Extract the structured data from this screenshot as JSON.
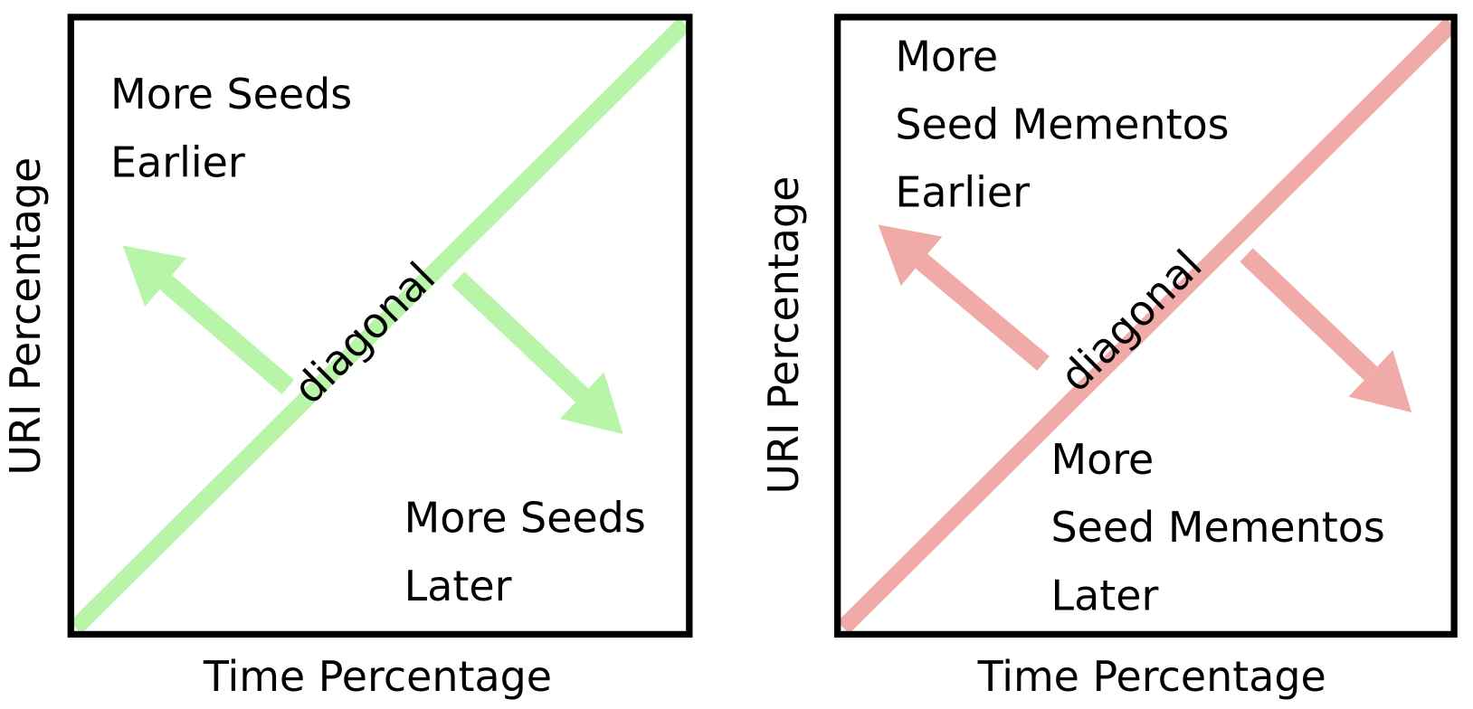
{
  "panels": [
    {
      "y_label": "URI Percentage",
      "x_label": "Time Percentage",
      "diagonal_label": "diagonal",
      "upper_label": [
        "More Seeds",
        "Earlier"
      ],
      "lower_label": [
        "More Seeds",
        "Later"
      ]
    },
    {
      "y_label": "URI Percentage",
      "x_label": "Time Percentage",
      "diagonal_label": "diagonal",
      "upper_label": [
        "More",
        "Seed Mementos",
        "Earlier"
      ],
      "lower_label": [
        "More",
        "Seed Mementos",
        "Later"
      ]
    }
  ]
}
